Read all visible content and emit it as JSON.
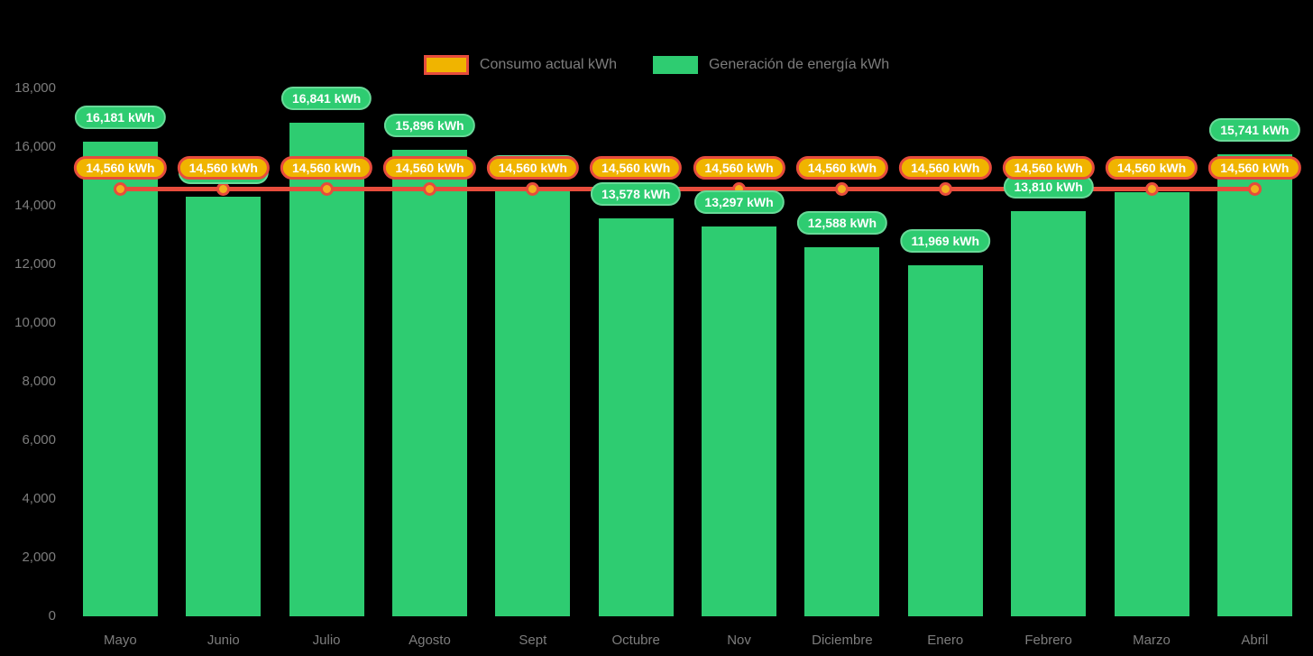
{
  "legend": {
    "consumption_label": "Consumo actual kWh",
    "generation_label": "Generación de energía kWh"
  },
  "colors": {
    "background": "#000000",
    "bar_green": "#2ECC71",
    "pill_orange_fill": "#F0B400",
    "line_red": "#E74C3C",
    "dot_fill": "#F2B01E",
    "axis_text": "#7D7D7D"
  },
  "chart_data": {
    "type": "bar",
    "subtype": "bar-with-line-overlay",
    "categories": [
      "Mayo",
      "Junio",
      "Julio",
      "Agosto",
      "Sept",
      "Octubre",
      "Nov",
      "Diciembre",
      "Enero",
      "Febrero",
      "Marzo",
      "Abril"
    ],
    "series": [
      {
        "name": "Consumo actual kWh",
        "type": "line",
        "values": [
          14560,
          14560,
          14560,
          14560,
          14560,
          14560,
          14560,
          14560,
          14560,
          14560,
          14560,
          14560
        ]
      },
      {
        "name": "Generación de energía kWh",
        "type": "bar",
        "values": [
          16181,
          14310,
          16841,
          15896,
          14480,
          13578,
          13297,
          12588,
          11969,
          13810,
          14460,
          15741
        ]
      }
    ],
    "generation_labels_hidden_behind_consumption": [
      "Junio",
      "Sept",
      "Marzo"
    ],
    "label_suffix": " kWh",
    "title": "",
    "xlabel": "",
    "ylabel": "",
    "ylim": [
      0,
      18000
    ],
    "yticks": [
      0,
      2000,
      4000,
      6000,
      8000,
      10000,
      12000,
      14000,
      16000,
      18000
    ],
    "grid": false,
    "legend_position": "top"
  }
}
